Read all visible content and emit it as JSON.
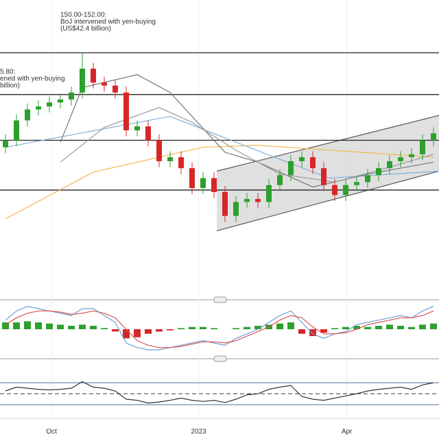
{
  "chart_data": {
    "type": "candlestick",
    "xlim": [
      -0.5,
      39.5
    ],
    "ylim": [
      126.0,
      155.3
    ],
    "xticks": [
      {
        "value": 4.2,
        "label": "Oct"
      },
      {
        "value": 17.6,
        "label": "2023"
      },
      {
        "value": 31.1,
        "label": "Apr"
      }
    ],
    "up_color": "#2ca02c",
    "down_color": "#d62728",
    "x": [
      0,
      1,
      2,
      3,
      4,
      5,
      6,
      7,
      8,
      9,
      10,
      11,
      12,
      13,
      14,
      15,
      16,
      17,
      18,
      19,
      20,
      21,
      22,
      23,
      24,
      25,
      26,
      27,
      28,
      29,
      30,
      31,
      32,
      33,
      34,
      35,
      36,
      37,
      38,
      39
    ],
    "open": [
      140.5,
      141.2,
      143.2,
      144.3,
      144.6,
      145.0,
      145.3,
      146.0,
      148.4,
      147.0,
      146.7,
      146.0,
      142.2,
      142.6,
      141.2,
      139.1,
      139.5,
      138.4,
      136.4,
      137.4,
      136.0,
      133.6,
      135.0,
      135.3,
      135.0,
      136.7,
      137.7,
      139.1,
      139.5,
      138.4,
      136.7,
      135.7,
      136.7,
      137.0,
      137.7,
      138.4,
      139.1,
      139.5,
      139.8,
      141.2
    ],
    "high": [
      141.8,
      143.8,
      144.9,
      145.2,
      145.6,
      145.9,
      146.6,
      150.0,
      149.0,
      147.6,
      147.3,
      146.6,
      143.2,
      143.2,
      141.8,
      140.1,
      140.1,
      139.0,
      138.0,
      138.0,
      136.6,
      135.6,
      135.9,
      135.9,
      137.3,
      138.3,
      139.7,
      140.1,
      140.1,
      139.0,
      137.3,
      137.3,
      137.6,
      138.3,
      139.0,
      139.7,
      140.1,
      140.4,
      141.8,
      142.5
    ],
    "low": [
      139.9,
      140.6,
      142.6,
      143.7,
      144.0,
      144.4,
      144.7,
      145.4,
      146.4,
      146.1,
      145.4,
      141.6,
      141.6,
      140.6,
      138.5,
      138.5,
      137.8,
      135.8,
      135.8,
      135.4,
      133.0,
      133.0,
      134.4,
      134.4,
      134.4,
      136.1,
      137.1,
      138.5,
      137.8,
      136.1,
      135.1,
      135.1,
      136.1,
      136.4,
      137.1,
      137.8,
      138.5,
      138.9,
      139.2,
      140.6
    ],
    "close": [
      141.2,
      143.2,
      144.3,
      144.6,
      145.0,
      145.3,
      146.0,
      148.4,
      147.0,
      146.7,
      146.0,
      142.2,
      142.6,
      141.2,
      139.1,
      139.5,
      138.4,
      136.4,
      137.4,
      136.0,
      133.6,
      135.0,
      135.3,
      135.0,
      136.7,
      137.7,
      139.1,
      139.5,
      138.4,
      136.7,
      135.7,
      136.7,
      137.0,
      137.7,
      138.4,
      139.1,
      139.5,
      139.8,
      141.2,
      141.9
    ],
    "levels": [
      150.0,
      145.8,
      141.2,
      136.2
    ],
    "channel": {
      "x": [
        19.25,
        39.5
      ],
      "upper": [
        138.1,
        143.7
      ],
      "lower": [
        132.1,
        138.1
      ],
      "color": "#bbbbbb"
    },
    "overlays": [
      {
        "color": "#f0b94a",
        "x": [
          0,
          8,
          18,
          23,
          39
        ],
        "values": [
          133.3,
          138.0,
          140.5,
          140.7,
          139.5
        ]
      },
      {
        "color": "#7fb0d8",
        "x": [
          0,
          15,
          24.5,
          29.5,
          39.5
        ],
        "values": [
          140.5,
          143.6,
          139.5,
          137.4,
          138.1
        ]
      },
      {
        "color": "#777777",
        "x": [
          5,
          7,
          12,
          15,
          20,
          23,
          28,
          33,
          39
        ],
        "values": [
          141.0,
          146.5,
          147.8,
          146.0,
          140.0,
          139.0,
          136.5,
          137.8,
          139.0
        ]
      },
      {
        "color": "#999999",
        "x": [
          5,
          9,
          14,
          17,
          21,
          25,
          30,
          35,
          39
        ],
        "values": [
          139.0,
          142.5,
          144.5,
          143.0,
          140.2,
          137.8,
          137.0,
          138.5,
          139.8
        ]
      }
    ],
    "annotations": [
      {
        "x": 5.0,
        "y": 153.6,
        "lines": [
          "150.00-152.00:",
          "BoJ intervened with yen-buying",
          "(US$42.4 billion)"
        ]
      },
      {
        "x": -0.5,
        "y": 147.9,
        "lines": [
          "5.80:",
          "ened with yen-buying",
          "billion)"
        ]
      }
    ],
    "macd": {
      "ylim": [
        -1.2,
        1.2
      ],
      "histogram": [
        0.3,
        0.3,
        0.35,
        0.3,
        0.25,
        0.2,
        0.15,
        0.2,
        0.15,
        0.05,
        -0.1,
        -0.4,
        -0.35,
        -0.2,
        -0.1,
        -0.05,
        0.05,
        0.1,
        0.1,
        0.05,
        0.0,
        0.05,
        0.1,
        0.15,
        0.2,
        0.25,
        0.3,
        -0.2,
        -0.3,
        -0.15,
        0.05,
        0.1,
        0.15,
        0.1,
        0.15,
        0.2,
        0.15,
        0.1,
        0.2,
        0.25
      ],
      "macd": [
        0.4,
        0.8,
        1.0,
        0.9,
        0.8,
        0.7,
        0.6,
        0.9,
        0.9,
        0.6,
        0.3,
        -0.6,
        -0.8,
        -0.9,
        -0.9,
        -0.8,
        -0.7,
        -0.6,
        -0.5,
        -0.6,
        -0.7,
        -0.4,
        -0.2,
        0.0,
        0.3,
        0.6,
        0.8,
        0.3,
        -0.2,
        -0.4,
        -0.2,
        -0.1,
        0.2,
        0.3,
        0.4,
        0.5,
        0.6,
        0.5,
        0.8,
        1.0
      ],
      "signal": [
        0.2,
        0.5,
        0.7,
        0.8,
        0.8,
        0.75,
        0.65,
        0.7,
        0.8,
        0.7,
        0.5,
        0.0,
        -0.5,
        -0.7,
        -0.8,
        -0.8,
        -0.75,
        -0.65,
        -0.55,
        -0.55,
        -0.6,
        -0.5,
        -0.3,
        -0.1,
        0.1,
        0.4,
        0.6,
        0.5,
        0.1,
        -0.2,
        -0.2,
        -0.15,
        0.0,
        0.2,
        0.3,
        0.4,
        0.5,
        0.5,
        0.6,
        0.8
      ],
      "macd_color": "#6a9fd4",
      "signal_color": "#e05050"
    },
    "rsi": {
      "ylim": [
        17.5,
        92.5
      ],
      "values": [
        55,
        62,
        60,
        58,
        57,
        58,
        60,
        72,
        62,
        60,
        55,
        40,
        38,
        33,
        35,
        38,
        42,
        38,
        36,
        38,
        34,
        40,
        48,
        50,
        58,
        62,
        65,
        45,
        40,
        38,
        42,
        46,
        50,
        55,
        58,
        60,
        62,
        58,
        66,
        70
      ],
      "levels": [
        70,
        50,
        30
      ],
      "color": "#333333"
    }
  }
}
